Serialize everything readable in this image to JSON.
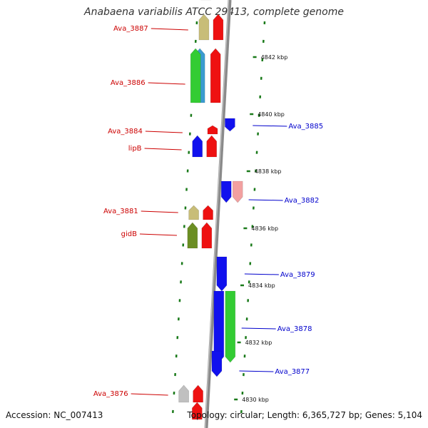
{
  "title": "Anabaena variabilis ATCC 29413, complete genome",
  "footer": {
    "accession": "Accession: NC_007413",
    "summary": "Topology: circular; Length: 6,365,727 bp; Genes: 5,104"
  },
  "scale": [
    {
      "text": "4842 kbp",
      "kb": 4842
    },
    {
      "text": "4840 kbp",
      "kb": 4840
    },
    {
      "text": "4838 kbp",
      "kb": 4838
    },
    {
      "text": "4836 kbp",
      "kb": 4836
    },
    {
      "text": "4834 kbp",
      "kb": 4834
    },
    {
      "text": "4832 kbp",
      "kb": 4832
    },
    {
      "text": "4830 kbp",
      "kb": 4830
    }
  ],
  "genes": [
    {
      "label": "Ava_3887",
      "side": "left",
      "kb": 4843.0,
      "color": "#cc0000"
    },
    {
      "label": "Ava_3886",
      "side": "left",
      "kb": 4841.1,
      "color": "#cc0000"
    },
    {
      "label": "Ava_3884",
      "side": "left",
      "kb": 4839.4,
      "color": "#cc0000"
    },
    {
      "label": "lipB",
      "side": "left",
      "kb": 4838.8,
      "color": "#cc0000"
    },
    {
      "label": "Ava_3881",
      "side": "left",
      "kb": 4836.6,
      "color": "#cc0000"
    },
    {
      "label": "gidB",
      "side": "left",
      "kb": 4835.8,
      "color": "#cc0000"
    },
    {
      "label": "Ava_3876",
      "side": "left",
      "kb": 4830.2,
      "color": "#cc0000"
    },
    {
      "label": "Ava_3885",
      "side": "right",
      "kb": 4839.6,
      "color": "#0000cc"
    },
    {
      "label": "Ava_3882",
      "side": "right",
      "kb": 4837.0,
      "color": "#0000cc"
    },
    {
      "label": "Ava_3879",
      "side": "right",
      "kb": 4834.4,
      "color": "#0000cc"
    },
    {
      "label": "Ava_3878",
      "side": "right",
      "kb": 4832.5,
      "color": "#0000cc"
    },
    {
      "label": "Ava_3877",
      "side": "right",
      "kb": 4831.0,
      "color": "#0000cc"
    }
  ],
  "features": [
    {
      "name": "ava-3888-cds",
      "kb": 4844.1,
      "length_kb": 0.7,
      "strand": "+",
      "color": "#ee1111"
    },
    {
      "name": "ava-3888-rna",
      "kb": 4844.0,
      "length_kb": 0.6,
      "strand": "+",
      "color": "#f2a0a0"
    },
    {
      "name": "ava-3887-cds",
      "kb": 4842.6,
      "length_kb": 0.9,
      "strand": "+",
      "color": "#ee1111"
    },
    {
      "name": "ava-3887-rna",
      "kb": 4842.6,
      "length_kb": 0.9,
      "strand": "+",
      "color": "#c8bd78"
    },
    {
      "name": "ava-3886-cds",
      "kb": 4840.4,
      "length_kb": 1.9,
      "strand": "+",
      "color": "#ee1111"
    },
    {
      "name": "ava-3886-rna",
      "kb": 4840.4,
      "length_kb": 1.9,
      "strand": "+",
      "color": "#3a9bd0"
    },
    {
      "name": "ava-3886-rna2",
      "kb": 4840.4,
      "length_kb": 1.9,
      "strand": "+",
      "color": "#33cc33"
    },
    {
      "name": "ava-3884-cds",
      "kb": 4839.3,
      "length_kb": 0.3,
      "strand": "+",
      "color": "#ee1111"
    },
    {
      "name": "lipB-cds",
      "kb": 4838.5,
      "length_kb": 0.75,
      "strand": "+",
      "color": "#ee1111"
    },
    {
      "name": "lipB-rna",
      "kb": 4838.5,
      "length_kb": 0.75,
      "strand": "+",
      "color": "#1111ee"
    },
    {
      "name": "ava-3885-cds",
      "kb": 4839.4,
      "length_kb": 0.45,
      "strand": "-",
      "color": "#1111ee"
    },
    {
      "name": "ava-3882-cds",
      "kb": 4836.9,
      "length_kb": 0.75,
      "strand": "-",
      "color": "#1111ee"
    },
    {
      "name": "ava-3882-rna",
      "kb": 4836.9,
      "length_kb": 0.75,
      "strand": "-",
      "color": "#f2a0a0"
    },
    {
      "name": "ava-3881-cds",
      "kb": 4836.3,
      "length_kb": 0.5,
      "strand": "+",
      "color": "#ee1111"
    },
    {
      "name": "ava-3881-rna",
      "kb": 4836.3,
      "length_kb": 0.5,
      "strand": "+",
      "color": "#c8bd78"
    },
    {
      "name": "gidB-cds",
      "kb": 4835.3,
      "length_kb": 0.9,
      "strand": "+",
      "color": "#ee1111"
    },
    {
      "name": "gidB-rna",
      "kb": 4835.3,
      "length_kb": 0.9,
      "strand": "+",
      "color": "#6b8e23"
    },
    {
      "name": "ava-3879-cds",
      "kb": 4833.8,
      "length_kb": 1.2,
      "strand": "-",
      "color": "#1111ee"
    },
    {
      "name": "ava-3878-cds",
      "kb": 4831.3,
      "length_kb": 2.5,
      "strand": "-",
      "color": "#1111ee"
    },
    {
      "name": "ava-3878-rna",
      "kb": 4831.3,
      "length_kb": 2.5,
      "strand": "-",
      "color": "#33cc33"
    },
    {
      "name": "ava-3877-cds",
      "kb": 4830.8,
      "length_kb": 0.9,
      "strand": "-",
      "color": "#1111ee"
    },
    {
      "name": "ava-3876-cds",
      "kb": 4829.9,
      "length_kb": 0.6,
      "strand": "+",
      "color": "#ee1111"
    },
    {
      "name": "ava-3876-rna",
      "kb": 4829.9,
      "length_kb": 0.6,
      "strand": "+",
      "color": "#c0c0c0"
    },
    {
      "name": "ava-3875-cds",
      "kb": 4829.3,
      "length_kb": 0.6,
      "strand": "+",
      "color": "#ee1111"
    }
  ]
}
